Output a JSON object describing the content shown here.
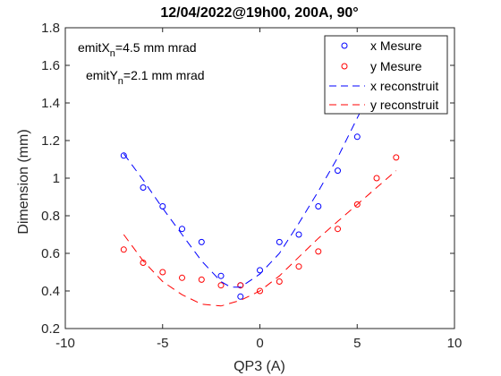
{
  "chart_data": {
    "type": "scatter",
    "title": "12/04/2022@19h00, 200A, 90°",
    "xlabel": "QP3 (A)",
    "ylabel": "Dimension (mm)",
    "xlim": [
      -10,
      10
    ],
    "ylim": [
      0.2,
      1.8
    ],
    "xticks": [
      -10,
      -5,
      0,
      5,
      10
    ],
    "xtick_labels": [
      "-10",
      "-5",
      "0",
      "5",
      "10"
    ],
    "yticks": [
      0.2,
      0.4,
      0.6,
      0.8,
      1.0,
      1.2,
      1.4,
      1.6,
      1.8
    ],
    "ytick_labels": [
      "0.2",
      "0.4",
      "0.6",
      "0.8",
      "1",
      "1.2",
      "1.4",
      "1.6",
      "1.8"
    ],
    "grid": false,
    "legend_position": "top-right",
    "annotations": [
      {
        "main": "emitX",
        "sub": "n",
        "rest": "=4.5 mm mrad"
      },
      {
        "main": "emitY",
        "sub": "n",
        "rest": "=2.1 mm mrad"
      }
    ],
    "series": [
      {
        "name": "x Mesure",
        "kind": "markers",
        "color": "#0000ff",
        "x": [
          -7,
          -6,
          -5,
          -4,
          -3,
          -2,
          -1,
          -1,
          0,
          1,
          2,
          3,
          4,
          5
        ],
        "y": [
          1.12,
          0.95,
          0.85,
          0.73,
          0.66,
          0.48,
          0.43,
          0.37,
          0.51,
          0.66,
          0.7,
          0.85,
          1.04,
          1.22
        ]
      },
      {
        "name": "y Mesure",
        "kind": "markers",
        "color": "#ff0000",
        "x": [
          -7,
          -6,
          -5,
          -4,
          -3,
          -2,
          -1,
          0,
          1,
          2,
          3,
          4,
          5,
          6,
          7
        ],
        "y": [
          0.62,
          0.55,
          0.5,
          0.47,
          0.46,
          0.43,
          0.43,
          0.4,
          0.45,
          0.53,
          0.61,
          0.73,
          0.86,
          1.0,
          1.11
        ]
      },
      {
        "name": "x reconstruit",
        "kind": "dashed-line",
        "color": "#0000ff",
        "x": [
          -7,
          -6,
          -5,
          -4,
          -3,
          -2,
          -1.5,
          -1,
          0,
          1,
          2,
          3,
          4,
          5,
          5.5
        ],
        "y": [
          1.13,
          0.99,
          0.84,
          0.7,
          0.56,
          0.45,
          0.42,
          0.42,
          0.49,
          0.6,
          0.76,
          0.93,
          1.11,
          1.32,
          1.42
        ]
      },
      {
        "name": "y reconstruit",
        "kind": "dashed-line",
        "color": "#ff0000",
        "x": [
          -7,
          -6,
          -5,
          -4,
          -3,
          -2,
          -1,
          0,
          1,
          2,
          3,
          4,
          5,
          6,
          7
        ],
        "y": [
          0.7,
          0.56,
          0.45,
          0.38,
          0.33,
          0.32,
          0.35,
          0.4,
          0.48,
          0.58,
          0.68,
          0.77,
          0.86,
          0.95,
          1.04
        ]
      }
    ]
  }
}
